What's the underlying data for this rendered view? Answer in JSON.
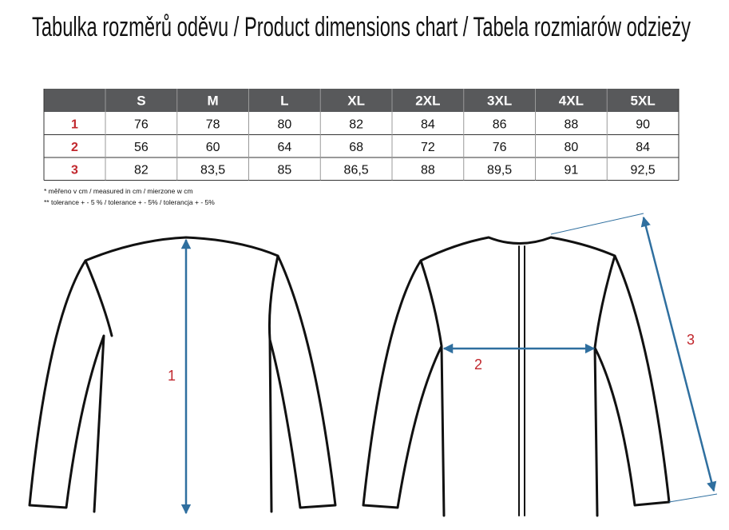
{
  "title": "Tabulka rozměrů oděvu / Product dimensions chart / Tabela rozmiarów odzieży",
  "table": {
    "header": [
      "S",
      "M",
      "L",
      "XL",
      "2XL",
      "3XL",
      "4XL",
      "5XL"
    ],
    "rows": [
      {
        "label": "1",
        "cells": [
          "76",
          "78",
          "80",
          "82",
          "84",
          "86",
          "88",
          "90"
        ]
      },
      {
        "label": "2",
        "cells": [
          "56",
          "60",
          "64",
          "68",
          "72",
          "76",
          "80",
          "84"
        ]
      },
      {
        "label": "3",
        "cells": [
          "82",
          "83,5",
          "85",
          "86,5",
          "88",
          "89,5",
          "91",
          "92,5"
        ]
      }
    ]
  },
  "notes": [
    "* měřeno v cm / measured in cm / mierzone w cm",
    "** tolerance + - 5 % / tolerance + - 5% / tolerancja + - 5%"
  ],
  "diagram": {
    "labels": [
      "1",
      "2",
      "3"
    ]
  }
}
